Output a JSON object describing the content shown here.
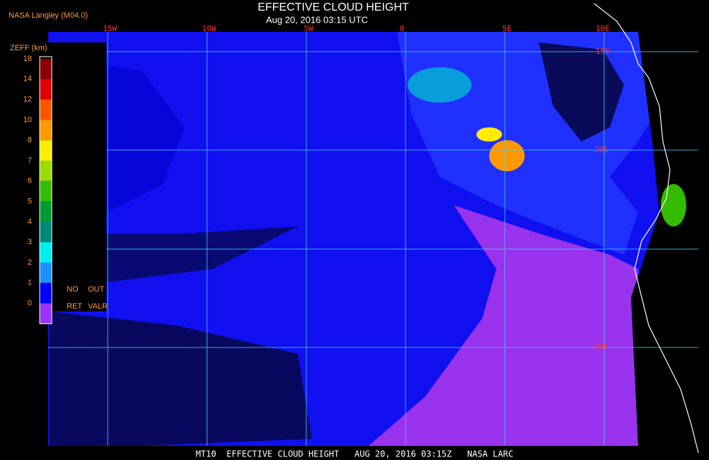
{
  "header": {
    "source": "NASA Langley (M04.0)",
    "title": "EFFECTIVE CLOUD HEIGHT",
    "time": "Aug 20, 2016 03:15 UTC"
  },
  "map": {
    "longitudes": [
      "15W",
      "10W",
      "5W",
      "0",
      "5E",
      "10E"
    ],
    "latitudes": [
      "15S",
      "20S",
      "30S"
    ]
  },
  "legend": {
    "title": "ZEFF (km)",
    "labels": [
      "18",
      "14",
      "12",
      "10",
      "8",
      "7",
      "6",
      "5",
      "4",
      "3",
      "2",
      "1",
      "0"
    ],
    "colors": [
      "#8b0000",
      "#e00000",
      "#ff5500",
      "#ff9900",
      "#ffee00",
      "#99dd00",
      "#33bb00",
      "#009a33",
      "#008877",
      "#00eeee",
      "#1e90ff",
      "#0000ff",
      "#9933ff"
    ],
    "notes": [
      "NO",
      "OUT",
      "RET",
      "VALR"
    ]
  },
  "footer": "MT10  EFFECTIVE CLOUD HEIGHT   AUG 20, 2016 03:15Z   NASA LARC"
}
